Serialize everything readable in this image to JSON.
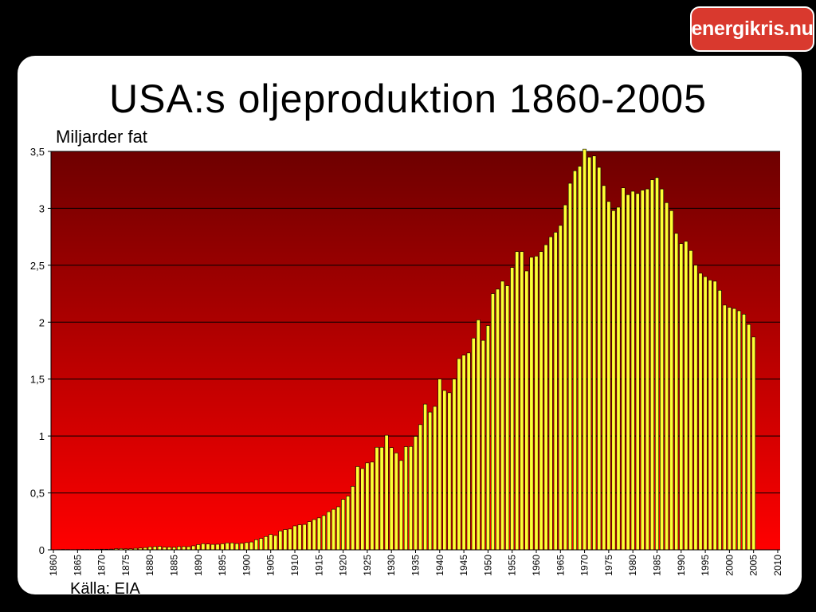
{
  "logo": {
    "text": "energikris.nu"
  },
  "title": "USA:s oljeproduktion 1860-2005",
  "y_axis_label": "Miljarder fat",
  "source": "Källa: EIA",
  "colors": {
    "background_top": "#6e0000",
    "background_bottom": "#ff0000",
    "bar_fill": "#ffff33",
    "bar_stroke": "#000000",
    "logo": "#d9392e"
  },
  "chart_data": {
    "type": "bar",
    "title": "USA:s oljeproduktion 1860-2005",
    "xlabel": "",
    "ylabel": "Miljarder fat",
    "ylim": [
      0,
      3.5
    ],
    "xlim": [
      1860,
      2010
    ],
    "grid": true,
    "y_ticks": [
      "0",
      "0,5",
      "1",
      "1,5",
      "2",
      "2,5",
      "3",
      "3,5"
    ],
    "x_ticks": [
      "1860",
      "1865",
      "1870",
      "1875",
      "1880",
      "1885",
      "1890",
      "1895",
      "1900",
      "1905",
      "1910",
      "1915",
      "1920",
      "1925",
      "1930",
      "1935",
      "1940",
      "1945",
      "1950",
      "1955",
      "1960",
      "1965",
      "1970",
      "1975",
      "1980",
      "1985",
      "1990",
      "1995",
      "2000",
      "2005",
      "2010"
    ],
    "series": [
      {
        "x": [
          1860,
          1861,
          1862,
          1863,
          1864,
          1865,
          1866,
          1867,
          1868,
          1869,
          1870,
          1871,
          1872,
          1873,
          1874,
          1875,
          1876,
          1877,
          1878,
          1879,
          1880,
          1881,
          1882,
          1883,
          1884,
          1885,
          1886,
          1887,
          1888,
          1889,
          1890,
          1891,
          1892,
          1893,
          1894,
          1895,
          1896,
          1897,
          1898,
          1899,
          1900,
          1901,
          1902,
          1903,
          1904,
          1905,
          1906,
          1907,
          1908,
          1909,
          1910,
          1911,
          1912,
          1913,
          1914,
          1915,
          1916,
          1917,
          1918,
          1919,
          1920,
          1921,
          1922,
          1923,
          1924,
          1925,
          1926,
          1927,
          1928,
          1929,
          1930,
          1931,
          1932,
          1933,
          1934,
          1935,
          1936,
          1937,
          1938,
          1939,
          1940,
          1941,
          1942,
          1943,
          1944,
          1945,
          1946,
          1947,
          1948,
          1949,
          1950,
          1951,
          1952,
          1953,
          1954,
          1955,
          1956,
          1957,
          1958,
          1959,
          1960,
          1961,
          1962,
          1963,
          1964,
          1965,
          1966,
          1967,
          1968,
          1969,
          1970,
          1971,
          1972,
          1973,
          1974,
          1975,
          1976,
          1977,
          1978,
          1979,
          1980,
          1981,
          1982,
          1983,
          1984,
          1985,
          1986,
          1987,
          1988,
          1989,
          1990,
          1991,
          1992,
          1993,
          1994,
          1995,
          1996,
          1997,
          1998,
          1999,
          2000,
          2001,
          2002,
          2003,
          2004,
          2005
        ],
        "values": [
          0.0005,
          0.002,
          0.003,
          0.0026,
          0.0021,
          0.0025,
          0.0036,
          0.0033,
          0.0036,
          0.0042,
          0.0053,
          0.0052,
          0.0063,
          0.0099,
          0.0109,
          0.0088,
          0.0091,
          0.0134,
          0.0154,
          0.0198,
          0.026,
          0.0277,
          0.0301,
          0.0234,
          0.0241,
          0.0219,
          0.0281,
          0.0283,
          0.0277,
          0.035,
          0.046,
          0.054,
          0.051,
          0.048,
          0.049,
          0.053,
          0.061,
          0.061,
          0.055,
          0.057,
          0.064,
          0.069,
          0.089,
          0.1,
          0.117,
          0.135,
          0.126,
          0.166,
          0.178,
          0.183,
          0.21,
          0.22,
          0.223,
          0.248,
          0.266,
          0.281,
          0.301,
          0.335,
          0.356,
          0.378,
          0.443,
          0.472,
          0.558,
          0.732,
          0.714,
          0.764,
          0.771,
          0.901,
          0.901,
          1.007,
          0.898,
          0.851,
          0.785,
          0.906,
          0.908,
          0.997,
          1.1,
          1.28,
          1.21,
          1.26,
          1.5,
          1.4,
          1.38,
          1.5,
          1.68,
          1.71,
          1.73,
          1.86,
          2.02,
          1.84,
          1.97,
          2.25,
          2.29,
          2.36,
          2.32,
          2.48,
          2.62,
          2.62,
          2.45,
          2.57,
          2.58,
          2.62,
          2.68,
          2.75,
          2.79,
          2.85,
          3.03,
          3.22,
          3.33,
          3.37,
          3.52,
          3.45,
          3.46,
          3.36,
          3.2,
          3.06,
          2.98,
          3.01,
          3.18,
          3.12,
          3.15,
          3.13,
          3.16,
          3.17,
          3.25,
          3.27,
          3.17,
          3.05,
          2.98,
          2.78,
          2.69,
          2.71,
          2.63,
          2.5,
          2.43,
          2.4,
          2.37,
          2.36,
          2.28,
          2.15,
          2.13,
          2.12,
          2.1,
          2.07,
          1.98,
          1.87
        ]
      }
    ]
  }
}
